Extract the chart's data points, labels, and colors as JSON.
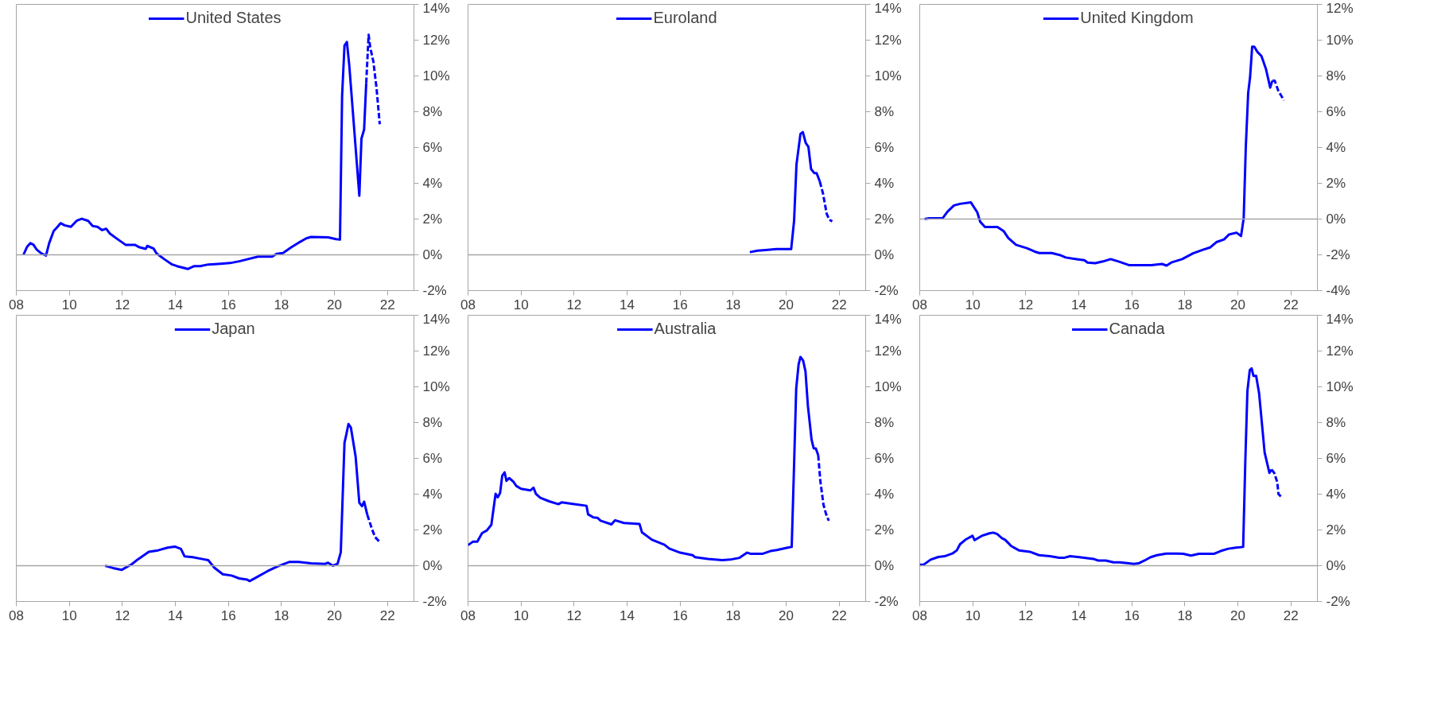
{
  "chart_data": [
    {
      "type": "line",
      "legend": "top",
      "xlim": [
        2008,
        2023
      ],
      "ylim": [
        -2,
        14
      ],
      "xticks": [
        {
          "value": 2008,
          "label": "08"
        },
        {
          "value": 2010,
          "label": "10"
        },
        {
          "value": 2012,
          "label": "12"
        },
        {
          "value": 2014,
          "label": "14"
        },
        {
          "value": 2016,
          "label": "16"
        },
        {
          "value": 2018,
          "label": "18"
        },
        {
          "value": 2020,
          "label": "20"
        },
        {
          "value": 2022,
          "label": "22"
        }
      ],
      "yticks": [
        {
          "value": -2,
          "label": "-2%"
        },
        {
          "value": 0,
          "label": "0%"
        },
        {
          "value": 2,
          "label": "2%"
        },
        {
          "value": 4,
          "label": "4%"
        },
        {
          "value": 6,
          "label": "6%"
        },
        {
          "value": 8,
          "label": "8%"
        },
        {
          "value": 10,
          "label": "10%"
        },
        {
          "value": 12,
          "label": "12%"
        },
        {
          "value": 14,
          "label": "14%"
        }
      ],
      "ref_lines": [
        {
          "axis": "y",
          "value": 0,
          "color": "#a6a6a6"
        }
      ],
      "series": [
        {
          "name": "United States",
          "color": "#0000ff",
          "x": [
            2008.27,
            2008.41,
            2008.53,
            2008.65,
            2008.76,
            2008.94,
            2009.12,
            2009.24,
            2009.41,
            2009.53,
            2009.67,
            2009.82,
            2010.06,
            2010.29,
            2010.47,
            2010.71,
            2010.88,
            2011.06,
            2011.24,
            2011.39,
            2011.53,
            2011.76,
            2011.94,
            2012.12,
            2012.47,
            2012.65,
            2012.88,
            2012.94,
            2013.18,
            2013.29,
            2013.59,
            2013.88,
            2014.06,
            2014.47,
            2014.71,
            2014.94,
            2015.24,
            2015.71,
            2016.06,
            2016.41,
            2016.71,
            2017.12,
            2017.65,
            2017.82,
            2018.06,
            2018.35,
            2018.71,
            2018.94,
            2019.12,
            2019.76,
            2020.06,
            2020.21,
            2020.29,
            2020.38,
            2020.47,
            2020.56,
            2020.68,
            2020.94,
            2021.02,
            2021.12,
            2021.2
          ],
          "values": [
            0.0,
            0.46,
            0.65,
            0.56,
            0.31,
            0.08,
            -0.04,
            0.65,
            1.33,
            1.52,
            1.77,
            1.65,
            1.57,
            1.92,
            2.02,
            1.9,
            1.61,
            1.57,
            1.38,
            1.46,
            1.19,
            0.94,
            0.75,
            0.56,
            0.56,
            0.42,
            0.33,
            0.5,
            0.35,
            0.08,
            -0.25,
            -0.54,
            -0.63,
            -0.79,
            -0.63,
            -0.63,
            -0.54,
            -0.5,
            -0.46,
            -0.36,
            -0.25,
            -0.1,
            -0.1,
            0.06,
            0.1,
            0.4,
            0.73,
            0.92,
            1.0,
            0.98,
            0.88,
            0.85,
            8.9,
            11.7,
            11.9,
            10.6,
            8.3,
            3.3,
            6.5,
            7.0,
            9.6
          ]
        },
        {
          "color": "#0000ff",
          "line_style": "dashed",
          "x": [
            2021.2,
            2021.29,
            2021.35,
            2021.47,
            2021.59,
            2021.71
          ],
          "values": [
            9.6,
            12.3,
            11.6,
            10.8,
            9.3,
            7.3
          ]
        }
      ]
    },
    {
      "type": "line",
      "legend": "top",
      "xlim": [
        2008,
        2023
      ],
      "ylim": [
        -2,
        14
      ],
      "xticks": [
        {
          "value": 2008,
          "label": "08"
        },
        {
          "value": 2010,
          "label": "10"
        },
        {
          "value": 2012,
          "label": "12"
        },
        {
          "value": 2014,
          "label": "14"
        },
        {
          "value": 2016,
          "label": "16"
        },
        {
          "value": 2018,
          "label": "18"
        },
        {
          "value": 2020,
          "label": "20"
        },
        {
          "value": 2022,
          "label": "22"
        }
      ],
      "yticks": [
        {
          "value": -2,
          "label": "-2%"
        },
        {
          "value": 0,
          "label": "0%"
        },
        {
          "value": 2,
          "label": "2%"
        },
        {
          "value": 4,
          "label": "4%"
        },
        {
          "value": 6,
          "label": "6%"
        },
        {
          "value": 8,
          "label": "8%"
        },
        {
          "value": 10,
          "label": "10%"
        },
        {
          "value": 12,
          "label": "12%"
        },
        {
          "value": 14,
          "label": "14%"
        }
      ],
      "ref_lines": [
        {
          "axis": "y",
          "value": 0,
          "color": "#a6a6a6"
        }
      ],
      "series": [
        {
          "name": "Euroland",
          "color": "#0000ff",
          "x": [
            2018.63,
            2018.92,
            2019.22,
            2019.63,
            2020.19,
            2020.3,
            2020.39,
            2020.54,
            2020.63,
            2020.74,
            2020.84,
            2020.94,
            2021.06,
            2021.15,
            2021.27
          ],
          "values": [
            0.15,
            0.23,
            0.27,
            0.32,
            0.32,
            1.9,
            5.05,
            6.76,
            6.86,
            6.25,
            6.04,
            4.8,
            4.57,
            4.57,
            4.1
          ]
        },
        {
          "color": "#0000ff",
          "line_style": "dashed",
          "x": [
            2021.27,
            2021.39,
            2021.53,
            2021.63,
            2021.74
          ],
          "values": [
            4.1,
            3.43,
            2.29,
            1.96,
            1.87
          ]
        }
      ]
    },
    {
      "type": "line",
      "legend": "top",
      "xlim": [
        2008,
        2023
      ],
      "ylim": [
        -4,
        12
      ],
      "xticks": [
        {
          "value": 2008,
          "label": "08"
        },
        {
          "value": 2010,
          "label": "10"
        },
        {
          "value": 2012,
          "label": "12"
        },
        {
          "value": 2014,
          "label": "14"
        },
        {
          "value": 2016,
          "label": "16"
        },
        {
          "value": 2018,
          "label": "18"
        },
        {
          "value": 2020,
          "label": "20"
        },
        {
          "value": 2022,
          "label": "22"
        }
      ],
      "yticks": [
        {
          "value": -4,
          "label": "-4%"
        },
        {
          "value": -2,
          "label": "-2%"
        },
        {
          "value": 0,
          "label": "0%"
        },
        {
          "value": 2,
          "label": "2%"
        },
        {
          "value": 4,
          "label": "4%"
        },
        {
          "value": 6,
          "label": "6%"
        },
        {
          "value": 8,
          "label": "8%"
        },
        {
          "value": 10,
          "label": "10%"
        },
        {
          "value": 12,
          "label": "12%"
        }
      ],
      "ref_lines": [
        {
          "axis": "y",
          "value": 0,
          "color": "#a6a6a6"
        }
      ],
      "series": [
        {
          "name": "United Kingdom",
          "color": "#0000ff",
          "x": [
            2008.18,
            2008.35,
            2008.86,
            2009.05,
            2009.29,
            2009.52,
            2009.93,
            2010.17,
            2010.28,
            2010.46,
            2010.93,
            2011.17,
            2011.34,
            2011.63,
            2012.04,
            2012.34,
            2012.51,
            2012.98,
            2013.28,
            2013.51,
            2013.92,
            2014.21,
            2014.33,
            2014.62,
            2014.91,
            2015.2,
            2015.5,
            2015.91,
            2016.73,
            2017.14,
            2017.31,
            2017.49,
            2017.9,
            2018.31,
            2018.66,
            2018.95,
            2019.19,
            2019.48,
            2019.66,
            2019.95,
            2020.12,
            2020.22,
            2020.3,
            2020.39,
            2020.46,
            2020.54,
            2020.62,
            2020.74,
            2020.89,
            2021.06,
            2021.22,
            2021.3
          ],
          "values": [
            0,
            0.04,
            0.04,
            0.42,
            0.76,
            0.85,
            0.93,
            0.38,
            -0.15,
            -0.44,
            -0.44,
            -0.68,
            -1.06,
            -1.44,
            -1.63,
            -1.82,
            -1.9,
            -1.9,
            -2.01,
            -2.15,
            -2.24,
            -2.3,
            -2.43,
            -2.47,
            -2.37,
            -2.24,
            -2.37,
            -2.58,
            -2.58,
            -2.51,
            -2.6,
            -2.43,
            -2.24,
            -1.92,
            -1.73,
            -1.59,
            -1.29,
            -1.14,
            -0.87,
            -0.76,
            -0.95,
            0.04,
            4.03,
            7.06,
            7.91,
            9.63,
            9.63,
            9.34,
            9.11,
            8.39,
            7.35,
            7.73
          ]
        },
        {
          "color": "#0000ff",
          "line_style": "dashed",
          "x": [
            2021.3,
            2021.39,
            2021.53,
            2021.74
          ],
          "values": [
            7.73,
            7.73,
            7.16,
            6.63
          ]
        }
      ]
    },
    {
      "type": "line",
      "legend": "top",
      "xlim": [
        2008,
        2023
      ],
      "ylim": [
        -2,
        14
      ],
      "xticks": [
        {
          "value": 2008,
          "label": "08"
        },
        {
          "value": 2010,
          "label": "10"
        },
        {
          "value": 2012,
          "label": "12"
        },
        {
          "value": 2014,
          "label": "14"
        },
        {
          "value": 2016,
          "label": "16"
        },
        {
          "value": 2018,
          "label": "18"
        },
        {
          "value": 2020,
          "label": "20"
        },
        {
          "value": 2022,
          "label": "22"
        }
      ],
      "yticks": [
        {
          "value": -2,
          "label": "-2%"
        },
        {
          "value": 0,
          "label": "0%"
        },
        {
          "value": 2,
          "label": "2%"
        },
        {
          "value": 4,
          "label": "4%"
        },
        {
          "value": 6,
          "label": "6%"
        },
        {
          "value": 8,
          "label": "8%"
        },
        {
          "value": 10,
          "label": "10%"
        },
        {
          "value": 12,
          "label": "12%"
        },
        {
          "value": 14,
          "label": "14%"
        }
      ],
      "ref_lines": [
        {
          "axis": "y",
          "value": 0,
          "color": "#a6a6a6"
        }
      ],
      "series": [
        {
          "name": "Japan",
          "color": "#0000ff",
          "x": [
            2011.35,
            2011.65,
            2011.98,
            2012.35,
            2012.59,
            2013.0,
            2013.35,
            2013.71,
            2013.98,
            2014.21,
            2014.35,
            2014.65,
            2015.06,
            2015.24,
            2015.47,
            2015.79,
            2016.12,
            2016.41,
            2016.71,
            2016.8,
            2017.06,
            2017.47,
            2017.82,
            2018.29,
            2018.65,
            2019.12,
            2019.65,
            2019.76,
            2019.94,
            2020.12,
            2020.24,
            2020.38,
            2020.45,
            2020.53,
            2020.62,
            2020.8,
            2020.94,
            2021.04,
            2021.12,
            2021.24
          ],
          "values": [
            0,
            -0.13,
            -0.23,
            0.08,
            0.36,
            0.78,
            0.86,
            1.01,
            1.07,
            0.94,
            0.52,
            0.48,
            0.36,
            0.31,
            -0.11,
            -0.48,
            -0.55,
            -0.71,
            -0.78,
            -0.86,
            -0.65,
            -0.31,
            -0.06,
            0.21,
            0.21,
            0.13,
            0.1,
            0.17,
            0,
            0.11,
            0.75,
            6.87,
            7.34,
            7.92,
            7.73,
            6.1,
            3.52,
            3.33,
            3.58,
            2.85
          ]
        },
        {
          "color": "#0000ff",
          "line_style": "dashed",
          "x": [
            2021.24,
            2021.41,
            2021.53,
            2021.71
          ],
          "values": [
            2.85,
            2.08,
            1.61,
            1.32
          ]
        }
      ]
    },
    {
      "type": "line",
      "legend": "top",
      "xlim": [
        2008,
        2023
      ],
      "ylim": [
        -2,
        14
      ],
      "xticks": [
        {
          "value": 2008,
          "label": "08"
        },
        {
          "value": 2010,
          "label": "10"
        },
        {
          "value": 2012,
          "label": "12"
        },
        {
          "value": 2014,
          "label": "14"
        },
        {
          "value": 2016,
          "label": "16"
        },
        {
          "value": 2018,
          "label": "18"
        },
        {
          "value": 2020,
          "label": "20"
        },
        {
          "value": 2022,
          "label": "22"
        }
      ],
      "yticks": [
        {
          "value": -2,
          "label": "-2%"
        },
        {
          "value": 0,
          "label": "0%"
        },
        {
          "value": 2,
          "label": "2%"
        },
        {
          "value": 4,
          "label": "4%"
        },
        {
          "value": 6,
          "label": "6%"
        },
        {
          "value": 8,
          "label": "8%"
        },
        {
          "value": 10,
          "label": "10%"
        },
        {
          "value": 12,
          "label": "12%"
        },
        {
          "value": 14,
          "label": "14%"
        }
      ],
      "ref_lines": [
        {
          "axis": "y",
          "value": 0,
          "color": "#a6a6a6"
        }
      ],
      "series": [
        {
          "name": "Australia",
          "color": "#0000ff",
          "x": [
            2008.0,
            2008.18,
            2008.35,
            2008.53,
            2008.71,
            2008.88,
            2009.04,
            2009.12,
            2009.21,
            2009.29,
            2009.38,
            2009.45,
            2009.55,
            2009.71,
            2009.82,
            2010.0,
            2010.35,
            2010.47,
            2010.56,
            2010.73,
            2011.06,
            2011.41,
            2011.53,
            2011.94,
            2012.47,
            2012.53,
            2012.73,
            2012.88,
            2013.0,
            2013.41,
            2013.55,
            2013.88,
            2014.47,
            2014.56,
            2014.94,
            2015.41,
            2015.59,
            2016.0,
            2016.47,
            2016.56,
            2017.06,
            2017.24,
            2017.59,
            2017.88,
            2018.24,
            2018.53,
            2018.65,
            2019.12,
            2019.41,
            2019.65,
            2020.06,
            2020.21,
            2020.29,
            2020.38,
            2020.47,
            2020.54,
            2020.64,
            2020.73,
            2020.82,
            2020.96,
            2021.04,
            2021.12,
            2021.21
          ],
          "values": [
            1.15,
            1.34,
            1.34,
            1.82,
            1.97,
            2.29,
            4.02,
            3.82,
            4.07,
            5.03,
            5.22,
            4.74,
            4.9,
            4.7,
            4.46,
            4.3,
            4.21,
            4.36,
            4.02,
            3.79,
            3.6,
            3.44,
            3.54,
            3.46,
            3.35,
            2.87,
            2.7,
            2.68,
            2.52,
            2.31,
            2.54,
            2.39,
            2.33,
            1.87,
            1.45,
            1.17,
            0.96,
            0.73,
            0.59,
            0.48,
            0.38,
            0.36,
            0.31,
            0.34,
            0.44,
            0.73,
            0.67,
            0.67,
            0.82,
            0.88,
            1.01,
            1.05,
            5.13,
            9.91,
            11.25,
            11.67,
            11.47,
            10.86,
            8.95,
            7.04,
            6.56,
            6.56,
            6.18
          ]
        },
        {
          "color": "#0000ff",
          "line_style": "dashed",
          "x": [
            2021.21,
            2021.29,
            2021.41,
            2021.51,
            2021.61
          ],
          "values": [
            6.18,
            4.74,
            3.4,
            2.87,
            2.51
          ]
        }
      ]
    },
    {
      "type": "line",
      "legend": "top",
      "xlim": [
        2008,
        2023
      ],
      "ylim": [
        -2,
        14
      ],
      "xticks": [
        {
          "value": 2008,
          "label": "08"
        },
        {
          "value": 2010,
          "label": "10"
        },
        {
          "value": 2012,
          "label": "12"
        },
        {
          "value": 2014,
          "label": "14"
        },
        {
          "value": 2016,
          "label": "16"
        },
        {
          "value": 2018,
          "label": "18"
        },
        {
          "value": 2020,
          "label": "20"
        },
        {
          "value": 2022,
          "label": "22"
        }
      ],
      "yticks": [
        {
          "value": -2,
          "label": "-2%"
        },
        {
          "value": 0,
          "label": "0%"
        },
        {
          "value": 2,
          "label": "2%"
        },
        {
          "value": 4,
          "label": "4%"
        },
        {
          "value": 6,
          "label": "6%"
        },
        {
          "value": 8,
          "label": "8%"
        },
        {
          "value": 10,
          "label": "10%"
        },
        {
          "value": 12,
          "label": "12%"
        },
        {
          "value": 14,
          "label": "14%"
        }
      ],
      "ref_lines": [
        {
          "axis": "y",
          "value": 0,
          "color": "#a6a6a6"
        }
      ],
      "series": [
        {
          "name": "Canada",
          "color": "#0000ff",
          "x": [
            2008.0,
            2008.15,
            2008.41,
            2008.7,
            2008.94,
            2009.23,
            2009.4,
            2009.52,
            2009.75,
            2009.99,
            2010.07,
            2010.34,
            2010.63,
            2010.77,
            2010.92,
            2011.1,
            2011.22,
            2011.45,
            2011.74,
            2012.15,
            2012.5,
            2012.91,
            2013.26,
            2013.44,
            2013.67,
            2014.02,
            2014.55,
            2014.73,
            2015.02,
            2015.31,
            2015.54,
            2015.9,
            2016.07,
            2016.25,
            2016.48,
            2016.71,
            2016.95,
            2017.3,
            2017.71,
            2017.94,
            2018.23,
            2018.53,
            2019.11,
            2019.35,
            2019.64,
            2019.93,
            2020.2,
            2020.28,
            2020.36,
            2020.45,
            2020.52,
            2020.59,
            2020.69,
            2020.8,
            2021.01,
            2021.19,
            2021.27
          ],
          "values": [
            0.06,
            0.06,
            0.34,
            0.49,
            0.53,
            0.68,
            0.86,
            1.2,
            1.48,
            1.67,
            1.43,
            1.67,
            1.81,
            1.85,
            1.77,
            1.54,
            1.45,
            1.1,
            0.86,
            0.78,
            0.59,
            0.53,
            0.44,
            0.44,
            0.53,
            0.48,
            0.38,
            0.29,
            0.29,
            0.19,
            0.19,
            0.13,
            0.1,
            0.13,
            0.29,
            0.48,
            0.59,
            0.68,
            0.68,
            0.67,
            0.57,
            0.67,
            0.67,
            0.82,
            0.95,
            1.01,
            1.05,
            5.76,
            9.76,
            10.94,
            11.03,
            10.61,
            10.61,
            9.66,
            6.33,
            5.19,
            5.38
          ]
        },
        {
          "color": "#0000ff",
          "line_style": "dashed",
          "x": [
            2021.27,
            2021.37,
            2021.49,
            2021.53,
            2021.63
          ],
          "values": [
            5.38,
            5.19,
            4.66,
            4.01,
            3.86
          ]
        }
      ]
    }
  ]
}
